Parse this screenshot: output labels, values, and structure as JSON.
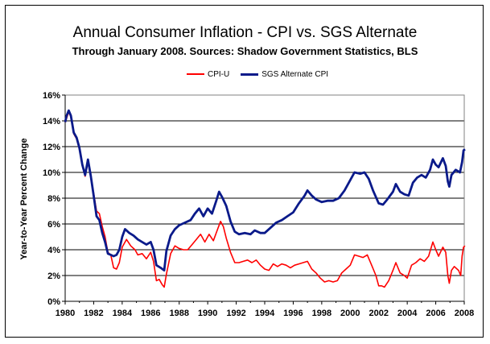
{
  "chart_data": {
    "type": "line",
    "title": "Annual Consumer Inflation - CPI vs. SGS Alternate",
    "subtitle": "Through January 2008.  Sources: Shadow Government Statistics, BLS",
    "ylabel": "Year-to-Year Percent Change",
    "xlabel": "",
    "xlim": [
      1980,
      2008
    ],
    "ylim": [
      0,
      16
    ],
    "x_ticks": [
      "1980",
      "1982",
      "1984",
      "1986",
      "1988",
      "1990",
      "1992",
      "1994",
      "1996",
      "1998",
      "2000",
      "2002",
      "2004",
      "2006",
      "2008"
    ],
    "y_ticks": [
      "0%",
      "2%",
      "4%",
      "6%",
      "8%",
      "10%",
      "12%",
      "14%",
      "16%"
    ],
    "grid": "horizontal",
    "legend_position": "top-center",
    "series": [
      {
        "name": "CPI-U",
        "color": "#ff0000",
        "points": [
          [
            1980.0,
            13.9
          ],
          [
            1980.1,
            14.2
          ],
          [
            1980.25,
            14.7
          ],
          [
            1980.4,
            14.3
          ],
          [
            1980.6,
            13.0
          ],
          [
            1980.8,
            12.6
          ],
          [
            1981.0,
            11.8
          ],
          [
            1981.2,
            10.5
          ],
          [
            1981.4,
            9.7
          ],
          [
            1981.6,
            10.8
          ],
          [
            1981.8,
            9.6
          ],
          [
            1982.0,
            8.4
          ],
          [
            1982.2,
            7.0
          ],
          [
            1982.4,
            6.8
          ],
          [
            1982.6,
            5.8
          ],
          [
            1982.8,
            5.0
          ],
          [
            1983.0,
            3.8
          ],
          [
            1983.2,
            3.6
          ],
          [
            1983.4,
            2.6
          ],
          [
            1983.6,
            2.5
          ],
          [
            1983.8,
            3.0
          ],
          [
            1984.0,
            4.2
          ],
          [
            1984.3,
            4.8
          ],
          [
            1984.6,
            4.3
          ],
          [
            1984.9,
            4.0
          ],
          [
            1985.1,
            3.6
          ],
          [
            1985.4,
            3.7
          ],
          [
            1985.7,
            3.3
          ],
          [
            1986.0,
            3.8
          ],
          [
            1986.2,
            3.1
          ],
          [
            1986.4,
            1.6
          ],
          [
            1986.6,
            1.7
          ],
          [
            1986.8,
            1.3
          ],
          [
            1986.95,
            1.1
          ],
          [
            1987.1,
            2.1
          ],
          [
            1987.4,
            3.7
          ],
          [
            1987.7,
            4.3
          ],
          [
            1988.0,
            4.1
          ],
          [
            1988.3,
            4.0
          ],
          [
            1988.6,
            4.0
          ],
          [
            1988.9,
            4.4
          ],
          [
            1989.2,
            4.8
          ],
          [
            1989.5,
            5.2
          ],
          [
            1989.8,
            4.6
          ],
          [
            1990.1,
            5.2
          ],
          [
            1990.4,
            4.7
          ],
          [
            1990.7,
            5.6
          ],
          [
            1990.9,
            6.2
          ],
          [
            1991.1,
            5.8
          ],
          [
            1991.3,
            4.9
          ],
          [
            1991.6,
            3.8
          ],
          [
            1991.9,
            3.0
          ],
          [
            1992.2,
            3.0
          ],
          [
            1992.5,
            3.1
          ],
          [
            1992.8,
            3.2
          ],
          [
            1993.1,
            3.0
          ],
          [
            1993.4,
            3.2
          ],
          [
            1993.7,
            2.8
          ],
          [
            1994.0,
            2.5
          ],
          [
            1994.3,
            2.4
          ],
          [
            1994.6,
            2.9
          ],
          [
            1994.9,
            2.7
          ],
          [
            1995.2,
            2.9
          ],
          [
            1995.5,
            2.8
          ],
          [
            1995.8,
            2.6
          ],
          [
            1996.1,
            2.8
          ],
          [
            1996.4,
            2.9
          ],
          [
            1996.7,
            3.0
          ],
          [
            1997.0,
            3.1
          ],
          [
            1997.3,
            2.5
          ],
          [
            1997.6,
            2.2
          ],
          [
            1997.9,
            1.8
          ],
          [
            1998.2,
            1.5
          ],
          [
            1998.5,
            1.6
          ],
          [
            1998.8,
            1.5
          ],
          [
            1999.1,
            1.6
          ],
          [
            1999.4,
            2.2
          ],
          [
            1999.7,
            2.5
          ],
          [
            2000.0,
            2.8
          ],
          [
            2000.3,
            3.6
          ],
          [
            2000.6,
            3.5
          ],
          [
            2000.9,
            3.4
          ],
          [
            2001.2,
            3.6
          ],
          [
            2001.5,
            2.8
          ],
          [
            2001.8,
            2.0
          ],
          [
            2002.0,
            1.2
          ],
          [
            2002.2,
            1.2
          ],
          [
            2002.4,
            1.1
          ],
          [
            2002.7,
            1.6
          ],
          [
            2003.0,
            2.4
          ],
          [
            2003.2,
            3.0
          ],
          [
            2003.5,
            2.2
          ],
          [
            2003.8,
            2.0
          ],
          [
            2004.0,
            1.8
          ],
          [
            2004.3,
            2.8
          ],
          [
            2004.6,
            3.0
          ],
          [
            2004.9,
            3.3
          ],
          [
            2005.2,
            3.1
          ],
          [
            2005.5,
            3.5
          ],
          [
            2005.8,
            4.6
          ],
          [
            2006.0,
            4.0
          ],
          [
            2006.2,
            3.5
          ],
          [
            2006.5,
            4.2
          ],
          [
            2006.7,
            3.8
          ],
          [
            2006.85,
            2.0
          ],
          [
            2006.95,
            1.4
          ],
          [
            2007.1,
            2.4
          ],
          [
            2007.3,
            2.7
          ],
          [
            2007.6,
            2.4
          ],
          [
            2007.75,
            2.0
          ],
          [
            2007.85,
            3.5
          ],
          [
            2007.95,
            4.2
          ],
          [
            2008.05,
            4.3
          ]
        ]
      },
      {
        "name": "SGS Alternate CPI",
        "color": "#0a1a8a",
        "points": [
          [
            1980.0,
            13.9
          ],
          [
            1980.1,
            14.4
          ],
          [
            1980.25,
            14.8
          ],
          [
            1980.4,
            14.4
          ],
          [
            1980.6,
            13.1
          ],
          [
            1980.8,
            12.7
          ],
          [
            1981.0,
            11.9
          ],
          [
            1981.2,
            10.6
          ],
          [
            1981.4,
            9.8
          ],
          [
            1981.6,
            11.0
          ],
          [
            1981.8,
            9.7
          ],
          [
            1982.0,
            8.2
          ],
          [
            1982.2,
            6.6
          ],
          [
            1982.4,
            6.3
          ],
          [
            1982.6,
            5.3
          ],
          [
            1982.8,
            4.6
          ],
          [
            1983.0,
            3.7
          ],
          [
            1983.2,
            3.6
          ],
          [
            1983.4,
            3.5
          ],
          [
            1983.6,
            3.6
          ],
          [
            1983.8,
            4.0
          ],
          [
            1984.0,
            5.0
          ],
          [
            1984.2,
            5.6
          ],
          [
            1984.5,
            5.3
          ],
          [
            1984.8,
            5.1
          ],
          [
            1985.1,
            4.8
          ],
          [
            1985.4,
            4.6
          ],
          [
            1985.7,
            4.4
          ],
          [
            1986.0,
            4.6
          ],
          [
            1986.2,
            4.0
          ],
          [
            1986.4,
            2.8
          ],
          [
            1986.7,
            2.6
          ],
          [
            1986.95,
            2.4
          ],
          [
            1987.1,
            3.9
          ],
          [
            1987.4,
            5.1
          ],
          [
            1987.7,
            5.6
          ],
          [
            1988.0,
            5.9
          ],
          [
            1988.4,
            6.1
          ],
          [
            1988.8,
            6.3
          ],
          [
            1989.1,
            6.8
          ],
          [
            1989.4,
            7.2
          ],
          [
            1989.7,
            6.6
          ],
          [
            1990.0,
            7.2
          ],
          [
            1990.3,
            6.8
          ],
          [
            1990.6,
            7.8
          ],
          [
            1990.8,
            8.5
          ],
          [
            1991.0,
            8.1
          ],
          [
            1991.3,
            7.4
          ],
          [
            1991.6,
            6.2
          ],
          [
            1991.9,
            5.4
          ],
          [
            1992.2,
            5.2
          ],
          [
            1992.6,
            5.3
          ],
          [
            1993.0,
            5.2
          ],
          [
            1993.3,
            5.5
          ],
          [
            1993.7,
            5.3
          ],
          [
            1994.0,
            5.3
          ],
          [
            1994.4,
            5.7
          ],
          [
            1994.8,
            6.1
          ],
          [
            1995.2,
            6.3
          ],
          [
            1995.6,
            6.6
          ],
          [
            1996.0,
            6.9
          ],
          [
            1996.4,
            7.6
          ],
          [
            1996.8,
            8.2
          ],
          [
            1997.0,
            8.6
          ],
          [
            1997.3,
            8.2
          ],
          [
            1997.6,
            7.9
          ],
          [
            1998.0,
            7.7
          ],
          [
            1998.4,
            7.8
          ],
          [
            1998.8,
            7.8
          ],
          [
            1999.2,
            8.0
          ],
          [
            1999.6,
            8.6
          ],
          [
            2000.0,
            9.4
          ],
          [
            2000.3,
            10.0
          ],
          [
            2000.7,
            9.9
          ],
          [
            2001.0,
            10.0
          ],
          [
            2001.3,
            9.5
          ],
          [
            2001.6,
            8.6
          ],
          [
            2002.0,
            7.6
          ],
          [
            2002.3,
            7.5
          ],
          [
            2002.6,
            7.9
          ],
          [
            2003.0,
            8.5
          ],
          [
            2003.2,
            9.1
          ],
          [
            2003.5,
            8.5
          ],
          [
            2003.8,
            8.3
          ],
          [
            2004.1,
            8.2
          ],
          [
            2004.4,
            9.2
          ],
          [
            2004.7,
            9.6
          ],
          [
            2005.0,
            9.8
          ],
          [
            2005.3,
            9.6
          ],
          [
            2005.6,
            10.2
          ],
          [
            2005.8,
            11.0
          ],
          [
            2006.0,
            10.6
          ],
          [
            2006.2,
            10.4
          ],
          [
            2006.5,
            11.1
          ],
          [
            2006.7,
            10.5
          ],
          [
            2006.85,
            9.3
          ],
          [
            2006.95,
            8.9
          ],
          [
            2007.1,
            9.8
          ],
          [
            2007.4,
            10.2
          ],
          [
            2007.7,
            10.0
          ],
          [
            2007.85,
            10.8
          ],
          [
            2007.95,
            11.7
          ],
          [
            2008.05,
            11.8
          ]
        ]
      }
    ]
  }
}
